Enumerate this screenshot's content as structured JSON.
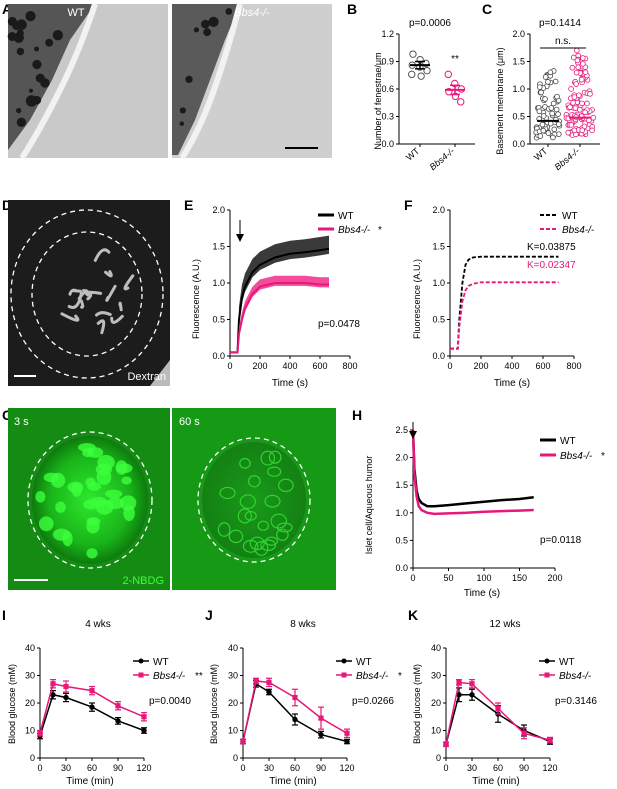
{
  "panels": {
    "A": {
      "letter": "A",
      "left_label": "WT",
      "right_label": "Bbs4-/-"
    },
    "B": {
      "letter": "B",
      "pvalue": "p=0.0006",
      "sig": "**",
      "ylabel": "Number of fenestrae/μm",
      "yticks": [
        "0.0",
        "0.3",
        "0.6",
        "0.9",
        "1.2"
      ],
      "xlabels": [
        "WT",
        "Bbs4-/-"
      ]
    },
    "C": {
      "letter": "C",
      "pvalue": "p=0.1414",
      "sig": "n.s.",
      "ylabel": "Basement membrane (μm)",
      "yticks": [
        "0.0",
        "0.5",
        "1.0",
        "1.5",
        "2.0"
      ],
      "xlabels": [
        "WT",
        "Bbs4-/-"
      ]
    },
    "D": {
      "letter": "D",
      "label": "Dextran"
    },
    "E": {
      "letter": "E",
      "legend": [
        "WT",
        "Bbs4-/-"
      ],
      "legend_star": "*",
      "pvalue": "p=0.0478",
      "ylabel": "Fluorescence (A.U.)",
      "xlabel": "Time (s)",
      "yticks": [
        "0.0",
        "0.5",
        "1.0",
        "1.5",
        "2.0"
      ],
      "xticks": [
        "0",
        "200",
        "400",
        "600",
        "800"
      ]
    },
    "F": {
      "letter": "F",
      "legend": [
        "WT",
        "Bbs4-/-"
      ],
      "k_wt": "K=0.03875",
      "k_ko": "K=0.02347",
      "ylabel": "Fluorescence (A.U.)",
      "xlabel": "Time (s)",
      "yticks": [
        "0.0",
        "0.5",
        "1.0",
        "1.5",
        "2.0"
      ],
      "xticks": [
        "0",
        "200",
        "400",
        "600",
        "800"
      ]
    },
    "G": {
      "letter": "G",
      "time1": "3 s",
      "time2": "60 s",
      "label": "2-NBDG"
    },
    "H": {
      "letter": "H",
      "legend": [
        "WT",
        "Bbs4-/-"
      ],
      "legend_star": "*",
      "pvalue": "p=0.0118",
      "ylabel": "Islet cell/Aqueous humor",
      "xlabel": "Time (s)",
      "yticks": [
        "0.0",
        "0.5",
        "1.0",
        "1.5",
        "2.0",
        "2.5"
      ],
      "xticks": [
        "0",
        "50",
        "100",
        "150",
        "200"
      ]
    },
    "I": {
      "letter": "I",
      "title": "4 wks",
      "legend": [
        "WT",
        "Bbs4-/-"
      ],
      "legend_star": "**",
      "pvalue": "p=0.0040",
      "ylabel": "Blood glucose (mM)",
      "xlabel": "Time (min)",
      "yticks": [
        "0",
        "10",
        "20",
        "30",
        "40"
      ],
      "xticks": [
        "0",
        "30",
        "60",
        "90",
        "120"
      ]
    },
    "J": {
      "letter": "J",
      "title": "8 wks",
      "legend": [
        "WT",
        "Bbs4-/-"
      ],
      "legend_star": "*",
      "pvalue": "p=0.0266",
      "ylabel": "Blood glucose (mM)",
      "xlabel": "Time (min)",
      "yticks": [
        "0",
        "10",
        "20",
        "30",
        "40"
      ],
      "xticks": [
        "0",
        "30",
        "60",
        "90",
        "120"
      ]
    },
    "K": {
      "letter": "K",
      "title": "12 wks",
      "legend": [
        "WT",
        "Bbs4-/-"
      ],
      "legend_star": "",
      "pvalue": "p=0.3146",
      "ylabel": "Blood glucose (mM)",
      "xlabel": "Time (min)",
      "yticks": [
        "0",
        "10",
        "20",
        "30",
        "40"
      ],
      "xticks": [
        "0",
        "30",
        "60",
        "90",
        "120"
      ]
    }
  },
  "colors": {
    "wt": "#000000",
    "ko": "#e8177a",
    "micro_green": "#1fbf1f"
  },
  "chart_data": [
    {
      "panel": "B",
      "type": "scatter",
      "categories": [
        "WT",
        "Bbs4-/-"
      ],
      "ylim": [
        0,
        1.2
      ],
      "series": [
        {
          "name": "WT",
          "values": [
            0.98,
            0.92,
            0.88,
            0.86,
            0.84,
            0.8,
            0.76,
            0.74
          ],
          "mean": 0.86,
          "sem": 0.04
        },
        {
          "name": "Bbs4-/-",
          "values": [
            0.76,
            0.66,
            0.6,
            0.57,
            0.52,
            0.46
          ],
          "mean": 0.59,
          "sem": 0.05
        }
      ]
    },
    {
      "panel": "C",
      "type": "scatter",
      "categories": [
        "WT",
        "Bbs4-/-"
      ],
      "ylim": [
        0,
        2.0
      ],
      "series": [
        {
          "name": "WT",
          "mean": 0.42,
          "sem": 0.04
        },
        {
          "name": "Bbs4-/-",
          "mean": 0.48,
          "sem": 0.03
        }
      ]
    },
    {
      "panel": "E",
      "type": "line",
      "xlim": [
        0,
        800
      ],
      "ylim": [
        0,
        2.0
      ],
      "series": [
        {
          "name": "WT",
          "x": [
            0,
            50,
            60,
            80,
            100,
            150,
            200,
            300,
            400,
            500,
            600,
            660
          ],
          "y": [
            0.05,
            0.05,
            0.5,
            0.8,
            0.95,
            1.15,
            1.25,
            1.35,
            1.4,
            1.42,
            1.45,
            1.47
          ]
        },
        {
          "name": "Bbs4-/-",
          "x": [
            0,
            50,
            60,
            80,
            100,
            150,
            200,
            300,
            400,
            500,
            600,
            660
          ],
          "y": [
            0.05,
            0.05,
            0.3,
            0.5,
            0.65,
            0.85,
            0.95,
            1.0,
            1.0,
            1.0,
            0.98,
            0.98
          ]
        }
      ]
    },
    {
      "panel": "F",
      "type": "line",
      "xlim": [
        0,
        800
      ],
      "ylim": [
        0,
        2.0
      ],
      "series": [
        {
          "name": "WT",
          "x": [
            0,
            50,
            60,
            80,
            100,
            120,
            150,
            200,
            300,
            400,
            500,
            600,
            700
          ],
          "y": [
            0.1,
            0.1,
            0.5,
            1.0,
            1.25,
            1.32,
            1.35,
            1.36,
            1.36,
            1.36,
            1.36,
            1.36,
            1.36
          ]
        },
        {
          "name": "Bbs4-/-",
          "x": [
            0,
            50,
            60,
            80,
            100,
            120,
            150,
            200,
            300,
            400,
            500,
            600,
            700
          ],
          "y": [
            0.1,
            0.1,
            0.4,
            0.75,
            0.9,
            0.96,
            0.99,
            1.01,
            1.01,
            1.01,
            1.01,
            1.01,
            1.01
          ]
        }
      ]
    },
    {
      "panel": "H",
      "type": "line",
      "xlim": [
        0,
        200
      ],
      "ylim": [
        0,
        2.5
      ],
      "series": [
        {
          "name": "WT",
          "x": [
            0,
            2,
            5,
            8,
            12,
            20,
            30,
            50,
            75,
            100,
            125,
            150,
            170
          ],
          "y": [
            2.5,
            1.8,
            1.4,
            1.25,
            1.18,
            1.12,
            1.12,
            1.14,
            1.17,
            1.2,
            1.23,
            1.25,
            1.28
          ]
        },
        {
          "name": "Bbs4-/-",
          "x": [
            0,
            2,
            5,
            8,
            12,
            20,
            30,
            50,
            75,
            100,
            125,
            150,
            170
          ],
          "y": [
            2.5,
            1.7,
            1.3,
            1.12,
            1.05,
            1.0,
            0.98,
            0.99,
            1.0,
            1.02,
            1.03,
            1.04,
            1.05
          ]
        }
      ]
    },
    {
      "panel": "I",
      "type": "line",
      "x": [
        0,
        15,
        30,
        60,
        90,
        120
      ],
      "ylim": [
        0,
        40
      ],
      "xlim": [
        0,
        120
      ],
      "series": [
        {
          "name": "WT",
          "values": [
            8,
            23,
            22,
            18.5,
            13.5,
            10
          ],
          "err": [
            1,
            1.5,
            1.5,
            1.5,
            1.2,
            1
          ]
        },
        {
          "name": "Bbs4-/-",
          "values": [
            9,
            27,
            26,
            24.5,
            19,
            15
          ],
          "err": [
            1,
            1.5,
            2,
            1.5,
            1.5,
            1.5
          ]
        }
      ]
    },
    {
      "panel": "J",
      "type": "line",
      "x": [
        0,
        15,
        30,
        60,
        90,
        120
      ],
      "ylim": [
        0,
        40
      ],
      "xlim": [
        0,
        120
      ],
      "series": [
        {
          "name": "WT",
          "values": [
            6,
            27,
            24,
            14,
            8.5,
            6
          ],
          "err": [
            0.8,
            1.2,
            1,
            2,
            1.2,
            0.8
          ]
        },
        {
          "name": "Bbs4-/-",
          "values": [
            6,
            28,
            27.5,
            22,
            14.5,
            9
          ],
          "err": [
            0.8,
            1,
            1.5,
            3,
            4,
            1.5
          ]
        }
      ]
    },
    {
      "panel": "K",
      "type": "line",
      "x": [
        0,
        15,
        30,
        60,
        90,
        120
      ],
      "ylim": [
        0,
        40
      ],
      "xlim": [
        0,
        120
      ],
      "series": [
        {
          "name": "WT",
          "values": [
            5,
            23,
            23,
            16,
            10,
            6
          ],
          "err": [
            0.8,
            2.5,
            2,
            3,
            2,
            1
          ]
        },
        {
          "name": "Bbs4-/-",
          "values": [
            5,
            27.5,
            27,
            18,
            9,
            6.5
          ],
          "err": [
            0.8,
            1,
            1.5,
            2,
            2,
            1
          ]
        }
      ]
    }
  ]
}
